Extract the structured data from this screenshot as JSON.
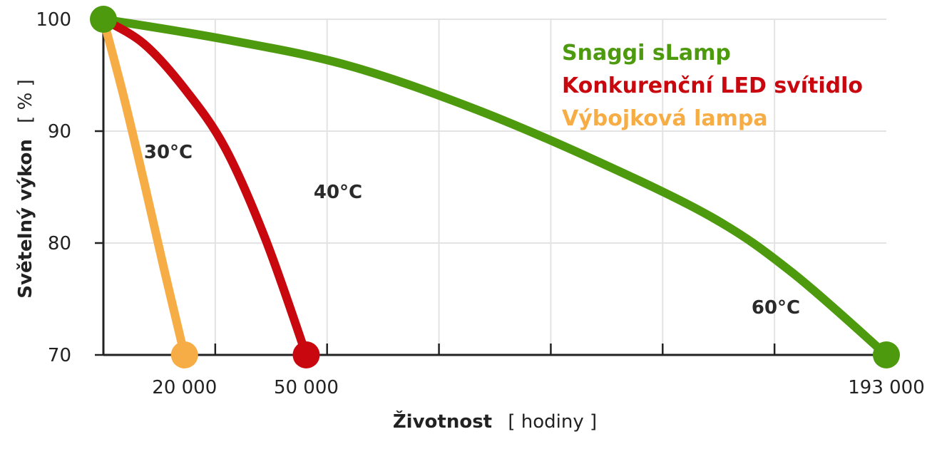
{
  "chart_data": {
    "type": "line",
    "xlabel": {
      "bold": "Životnost",
      "unit": "[ hodiny ]"
    },
    "ylabel": {
      "bold": "Světelný výkon",
      "unit": "[ % ]"
    },
    "ylim": [
      70,
      100
    ],
    "yticks": [
      70,
      80,
      90,
      100
    ],
    "xticks_labeled": [
      {
        "value": 20000,
        "label": "20 000"
      },
      {
        "value": 50000,
        "label": "50 000"
      },
      {
        "value": 193000,
        "label": "193 000"
      }
    ],
    "grid": true,
    "legend_position": "top-right",
    "series": [
      {
        "name": "Snaggi sLamp",
        "color": "#4e9a0e",
        "annotation": "60°C",
        "x": [
          0,
          30000,
          60000,
          90000,
          120000,
          150000,
          170000,
          193000
        ],
        "y": [
          100,
          98.2,
          95.9,
          92.2,
          87.6,
          82.3,
          77.3,
          70
        ]
      },
      {
        "name": "Konkurenční LED svítidlo",
        "color": "#c8080e",
        "annotation": "40°C",
        "x": [
          0,
          10000,
          20000,
          30000,
          40000,
          50000
        ],
        "y": [
          100,
          97.8,
          93.8,
          88.5,
          80.3,
          70
        ]
      },
      {
        "name": "Výbojková lampa",
        "color": "#f7ad46",
        "annotation": "30°C",
        "x": [
          0,
          5000,
          10000,
          15000,
          20000
        ],
        "y": [
          100,
          93.1,
          85.5,
          77.6,
          70
        ]
      }
    ]
  }
}
